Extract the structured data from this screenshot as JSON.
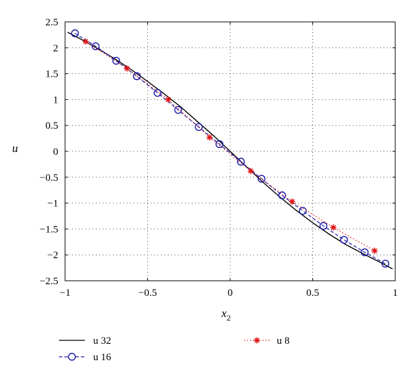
{
  "chart_data": {
    "type": "line",
    "xlabel": "x",
    "xlabel_sub": "2",
    "ylabel": "u",
    "xlim": [
      -1,
      1
    ],
    "ylim": [
      -2.5,
      2.5
    ],
    "xticks": [
      -1,
      -0.5,
      0,
      0.5,
      1
    ],
    "xtick_labels": [
      "−1",
      "−0.5",
      "0",
      "0.5",
      "1"
    ],
    "yticks": [
      2.5,
      2,
      1.5,
      1,
      0.5,
      0,
      -0.5,
      -1,
      -1.5,
      -2,
      -2.5
    ],
    "ytick_labels": [
      "2.5",
      "2",
      "1.5",
      "1",
      "0.5",
      "0",
      "−0.5",
      "−1",
      "−1.5",
      "−2",
      "−2.5"
    ],
    "grid": true,
    "legend_position": "below",
    "series": [
      {
        "name": "u 32",
        "style": "solid",
        "color": "#000000",
        "marker": "none",
        "x": [
          -0.984,
          -0.9,
          -0.8,
          -0.7,
          -0.6,
          -0.5,
          -0.4,
          -0.3,
          -0.2,
          -0.1,
          0,
          0.1,
          0.2,
          0.3,
          0.4,
          0.5,
          0.6,
          0.7,
          0.8,
          0.9,
          0.984
        ],
        "y": [
          2.3,
          2.16,
          1.98,
          1.79,
          1.58,
          1.35,
          1.11,
          0.86,
          0.58,
          0.3,
          0.0,
          -0.3,
          -0.6,
          -0.88,
          -1.14,
          -1.38,
          -1.6,
          -1.8,
          -1.97,
          -2.13,
          -2.27
        ]
      },
      {
        "name": "u 16",
        "style": "dashed",
        "color": "#1a1aa8",
        "marker": "circle",
        "x": [
          -0.94,
          -0.815,
          -0.69,
          -0.565,
          -0.44,
          -0.315,
          -0.19,
          -0.065,
          0.065,
          0.19,
          0.315,
          0.44,
          0.565,
          0.69,
          0.815,
          0.94
        ],
        "y": [
          2.28,
          2.03,
          1.75,
          1.45,
          1.13,
          0.8,
          0.47,
          0.14,
          -0.2,
          -0.53,
          -0.85,
          -1.15,
          -1.44,
          -1.71,
          -1.95,
          -2.17
        ]
      },
      {
        "name": "u 8",
        "style": "dotted",
        "color": "#e01515",
        "marker": "star",
        "x": [
          -0.875,
          -0.625,
          -0.375,
          -0.125,
          0.125,
          0.375,
          0.625,
          0.875
        ],
        "y": [
          2.12,
          1.6,
          1.0,
          0.27,
          -0.38,
          -0.97,
          -1.47,
          -1.92
        ]
      }
    ]
  }
}
